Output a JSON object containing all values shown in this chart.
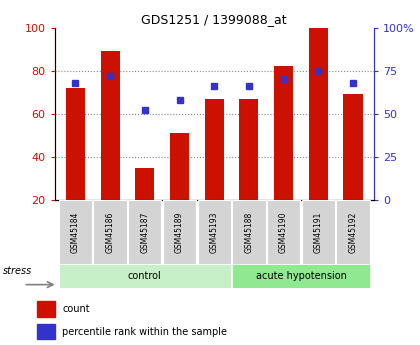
{
  "title": "GDS1251 / 1399088_at",
  "samples": [
    "GSM45184",
    "GSM45186",
    "GSM45187",
    "GSM45189",
    "GSM45193",
    "GSM45188",
    "GSM45190",
    "GSM45191",
    "GSM45192"
  ],
  "count_values": [
    72,
    89,
    35,
    51,
    67,
    67,
    82,
    100,
    69
  ],
  "percentile_values": [
    68,
    72,
    52,
    58,
    66,
    66,
    70,
    75,
    68
  ],
  "groups": [
    {
      "label": "control",
      "start": 0,
      "end": 5,
      "color": "#c8f0c8"
    },
    {
      "label": "acute hypotension",
      "start": 5,
      "end": 9,
      "color": "#90e890"
    }
  ],
  "ylim_left": [
    20,
    100
  ],
  "ylim_right": [
    0,
    100
  ],
  "yticks_left": [
    20,
    40,
    60,
    80,
    100
  ],
  "yticks_right": [
    0,
    25,
    50,
    75,
    100
  ],
  "yticklabels_right": [
    "0",
    "25",
    "50",
    "75",
    "100%"
  ],
  "bar_color": "#cc1100",
  "blue_color": "#3333cc",
  "grid_color": "#888888",
  "axis_color_left": "#cc1100",
  "axis_color_right": "#3333cc",
  "stress_label": "stress",
  "legend_count": "count",
  "legend_percentile": "percentile rank within the sample",
  "bar_width": 0.55
}
